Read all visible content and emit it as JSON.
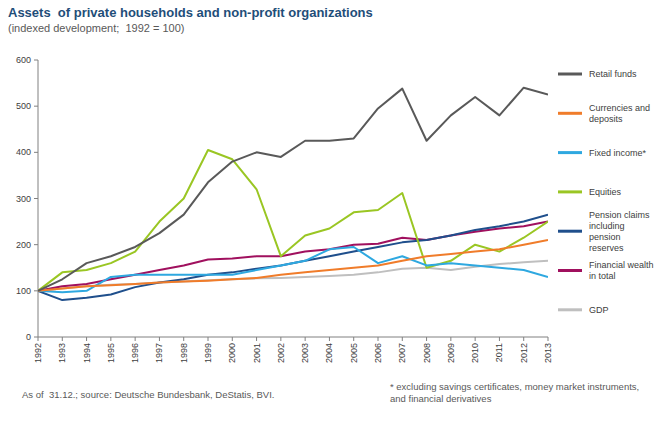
{
  "chart_data": {
    "type": "line",
    "title": "Assets  of private households and non-profit organizations",
    "subtitle": "(indexed development;  1992 = 100)",
    "source": "As of  31.12.; source: Deutsche Bundesbank, DeStatis, BVI.",
    "footnote": "* excluding savings certificates, money market instruments, and financial derivatives",
    "x": [
      1992,
      1993,
      1994,
      1995,
      1996,
      1997,
      1998,
      1999,
      2000,
      2001,
      2002,
      2003,
      2004,
      2005,
      2006,
      2007,
      2008,
      2009,
      2010,
      2011,
      2012,
      2013
    ],
    "xlim": [
      1992,
      2013
    ],
    "xticks": [
      1992,
      1993,
      1994,
      1995,
      1996,
      1997,
      1998,
      1999,
      2000,
      2001,
      2002,
      2003,
      2004,
      2005,
      2006,
      2007,
      2008,
      2009,
      2010,
      2011,
      2012,
      2013
    ],
    "ylim": [
      0,
      600
    ],
    "yticks": [
      0,
      100,
      200,
      300,
      400,
      500,
      600
    ],
    "grid": false,
    "legend": "right",
    "series": [
      {
        "name": "Retail funds",
        "color": "#595959",
        "values": [
          100,
          125,
          160,
          175,
          195,
          225,
          265,
          335,
          380,
          400,
          390,
          425,
          425,
          430,
          495,
          538,
          425,
          480,
          520,
          480,
          540,
          525
        ]
      },
      {
        "name": "Currencies and deposits",
        "color": "#f07c2a",
        "values": [
          100,
          105,
          110,
          112,
          115,
          118,
          120,
          122,
          125,
          128,
          135,
          140,
          145,
          150,
          155,
          165,
          175,
          180,
          185,
          190,
          200,
          210
        ]
      },
      {
        "name": "Fixed income*",
        "color": "#2ea8e0",
        "values": [
          100,
          97,
          100,
          130,
          135,
          135,
          135,
          135,
          135,
          145,
          155,
          165,
          190,
          195,
          160,
          175,
          155,
          160,
          155,
          150,
          145,
          130
        ]
      },
      {
        "name": "Equities",
        "color": "#9ac623",
        "values": [
          100,
          140,
          145,
          160,
          185,
          250,
          300,
          405,
          385,
          320,
          175,
          220,
          235,
          270,
          275,
          312,
          150,
          165,
          200,
          185,
          215,
          250
        ]
      },
      {
        "name": "Pension claims including pension reserves",
        "color": "#1f4f8c",
        "values": [
          100,
          80,
          85,
          92,
          108,
          118,
          125,
          135,
          140,
          148,
          155,
          165,
          175,
          185,
          195,
          205,
          210,
          220,
          232,
          240,
          250,
          265
        ]
      },
      {
        "name": "Financial wealth in total",
        "color": "#a0105e",
        "values": [
          100,
          110,
          115,
          125,
          135,
          145,
          155,
          168,
          170,
          175,
          175,
          185,
          190,
          200,
          202,
          215,
          210,
          220,
          228,
          235,
          240,
          250
        ]
      },
      {
        "name": "GDP",
        "color": "#bfbfbf",
        "values": [
          100,
          105,
          110,
          113,
          115,
          118,
          120,
          123,
          125,
          127,
          128,
          130,
          132,
          135,
          140,
          148,
          150,
          145,
          152,
          158,
          162,
          165
        ]
      }
    ]
  }
}
